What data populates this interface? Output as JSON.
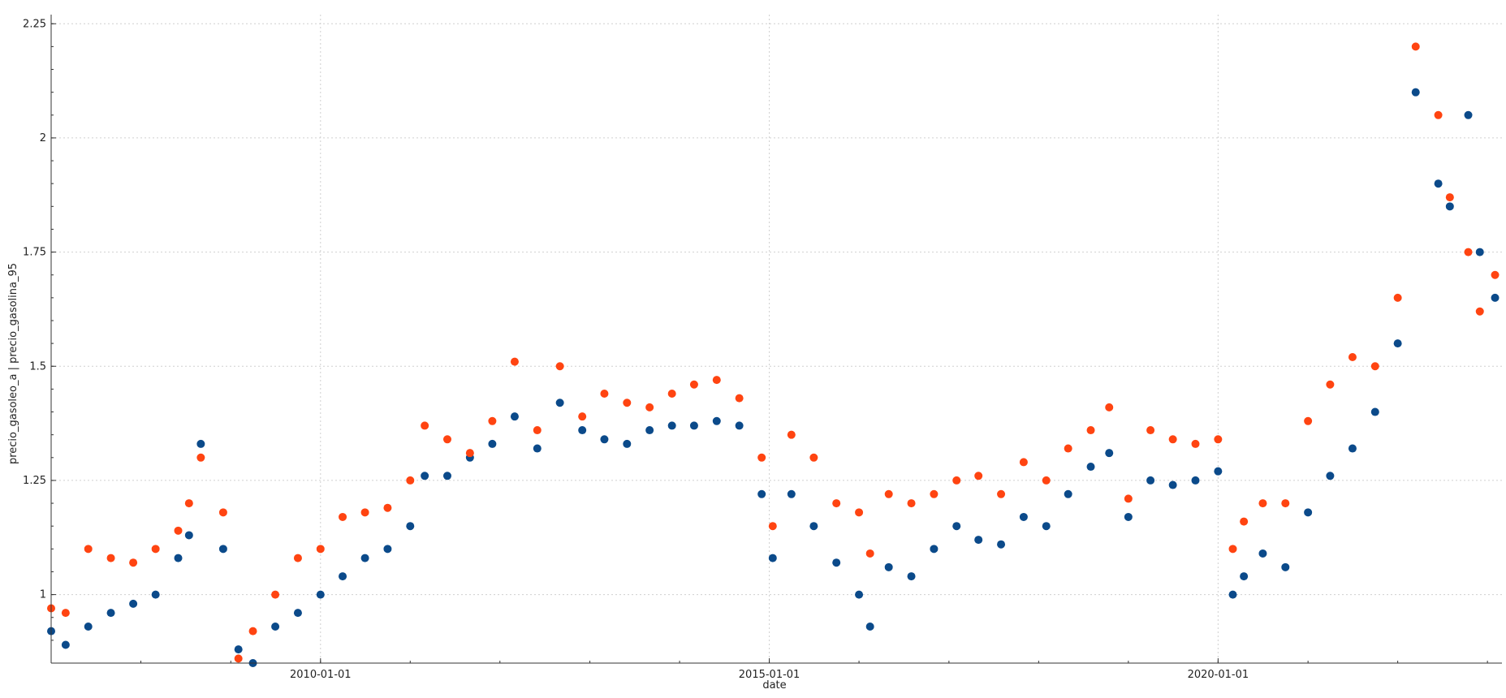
{
  "chart_data": {
    "type": "scatter",
    "xlabel": "date",
    "ylabel": "precio_gasoleo_a | precio_gasolina_95",
    "x_range": [
      "2007-01-01",
      "2023-03-01"
    ],
    "x_ticks": [
      "2010-01-01",
      "2015-01-01",
      "2020-01-01"
    ],
    "y_range": [
      0.85,
      2.27
    ],
    "y_ticks": [
      1.0,
      1.25,
      1.5,
      1.75,
      2.0,
      2.25
    ],
    "y_tick_labels": [
      "1",
      "1.25",
      "1.5",
      "1.75",
      "2",
      "2.25"
    ],
    "grid": true,
    "legend": "none",
    "colors": {
      "precio_gasoleo_a": "#0b4a8a",
      "precio_gasolina_95": "#ff4411"
    },
    "series": [
      {
        "name": "precio_gasoleo_a",
        "x": [
          "2007-01-01",
          "2007-03-01",
          "2007-06-01",
          "2007-09-01",
          "2007-12-01",
          "2008-03-01",
          "2008-06-01",
          "2008-07-15",
          "2008-09-01",
          "2008-12-01",
          "2009-02-01",
          "2009-04-01",
          "2009-07-01",
          "2009-10-01",
          "2010-01-01",
          "2010-04-01",
          "2010-07-01",
          "2010-10-01",
          "2011-01-01",
          "2011-03-01",
          "2011-06-01",
          "2011-09-01",
          "2011-12-01",
          "2012-03-01",
          "2012-06-01",
          "2012-09-01",
          "2012-12-01",
          "2013-03-01",
          "2013-06-01",
          "2013-09-01",
          "2013-12-01",
          "2014-03-01",
          "2014-06-01",
          "2014-09-01",
          "2014-12-01",
          "2015-01-15",
          "2015-04-01",
          "2015-07-01",
          "2015-10-01",
          "2016-01-01",
          "2016-02-15",
          "2016-05-01",
          "2016-08-01",
          "2016-11-01",
          "2017-02-01",
          "2017-05-01",
          "2017-08-01",
          "2017-11-01",
          "2018-02-01",
          "2018-05-01",
          "2018-08-01",
          "2018-10-15",
          "2019-01-01",
          "2019-04-01",
          "2019-07-01",
          "2019-10-01",
          "2020-01-01",
          "2020-03-01",
          "2020-04-15",
          "2020-07-01",
          "2020-10-01",
          "2021-01-01",
          "2021-04-01",
          "2021-07-01",
          "2021-10-01",
          "2022-01-01",
          "2022-03-15",
          "2022-06-15",
          "2022-08-01",
          "2022-10-15",
          "2022-12-01",
          "2023-02-01"
        ],
        "y": [
          0.92,
          0.89,
          0.93,
          0.96,
          0.98,
          1.0,
          1.08,
          1.13,
          1.33,
          1.1,
          0.88,
          0.85,
          0.93,
          0.96,
          1.0,
          1.04,
          1.08,
          1.1,
          1.15,
          1.26,
          1.26,
          1.3,
          1.33,
          1.39,
          1.32,
          1.42,
          1.36,
          1.34,
          1.33,
          1.36,
          1.37,
          1.37,
          1.38,
          1.37,
          1.22,
          1.08,
          1.22,
          1.15,
          1.07,
          1.0,
          0.93,
          1.06,
          1.04,
          1.1,
          1.15,
          1.12,
          1.11,
          1.17,
          1.15,
          1.22,
          1.28,
          1.31,
          1.17,
          1.25,
          1.24,
          1.25,
          1.27,
          1.0,
          1.04,
          1.09,
          1.06,
          1.18,
          1.26,
          1.32,
          1.4,
          1.55,
          2.1,
          1.9,
          1.85,
          2.05,
          1.75,
          1.65
        ]
      },
      {
        "name": "precio_gasolina_95",
        "x": [
          "2007-01-01",
          "2007-03-01",
          "2007-06-01",
          "2007-09-01",
          "2007-12-01",
          "2008-03-01",
          "2008-06-01",
          "2008-07-15",
          "2008-09-01",
          "2008-12-01",
          "2009-02-01",
          "2009-04-01",
          "2009-07-01",
          "2009-10-01",
          "2010-01-01",
          "2010-04-01",
          "2010-07-01",
          "2010-10-01",
          "2011-01-01",
          "2011-03-01",
          "2011-06-01",
          "2011-09-01",
          "2011-12-01",
          "2012-03-01",
          "2012-06-01",
          "2012-09-01",
          "2012-12-01",
          "2013-03-01",
          "2013-06-01",
          "2013-09-01",
          "2013-12-01",
          "2014-03-01",
          "2014-06-01",
          "2014-09-01",
          "2014-12-01",
          "2015-01-15",
          "2015-04-01",
          "2015-07-01",
          "2015-10-01",
          "2016-01-01",
          "2016-02-15",
          "2016-05-01",
          "2016-08-01",
          "2016-11-01",
          "2017-02-01",
          "2017-05-01",
          "2017-08-01",
          "2017-11-01",
          "2018-02-01",
          "2018-05-01",
          "2018-08-01",
          "2018-10-15",
          "2019-01-01",
          "2019-04-01",
          "2019-07-01",
          "2019-10-01",
          "2020-01-01",
          "2020-03-01",
          "2020-04-15",
          "2020-07-01",
          "2020-10-01",
          "2021-01-01",
          "2021-04-01",
          "2021-07-01",
          "2021-10-01",
          "2022-01-01",
          "2022-03-15",
          "2022-06-15",
          "2022-08-01",
          "2022-10-15",
          "2022-12-01",
          "2023-02-01"
        ],
        "y": [
          0.97,
          0.96,
          1.1,
          1.08,
          1.07,
          1.1,
          1.14,
          1.2,
          1.3,
          1.18,
          0.86,
          0.92,
          1.0,
          1.08,
          1.1,
          1.17,
          1.18,
          1.19,
          1.25,
          1.37,
          1.34,
          1.31,
          1.38,
          1.51,
          1.36,
          1.5,
          1.39,
          1.44,
          1.42,
          1.41,
          1.44,
          1.46,
          1.47,
          1.43,
          1.3,
          1.15,
          1.35,
          1.3,
          1.2,
          1.18,
          1.09,
          1.22,
          1.2,
          1.22,
          1.25,
          1.26,
          1.22,
          1.29,
          1.25,
          1.32,
          1.36,
          1.41,
          1.21,
          1.36,
          1.34,
          1.33,
          1.34,
          1.1,
          1.16,
          1.2,
          1.2,
          1.38,
          1.46,
          1.52,
          1.5,
          1.65,
          2.2,
          2.05,
          1.87,
          1.75,
          1.62,
          1.7
        ]
      }
    ]
  }
}
